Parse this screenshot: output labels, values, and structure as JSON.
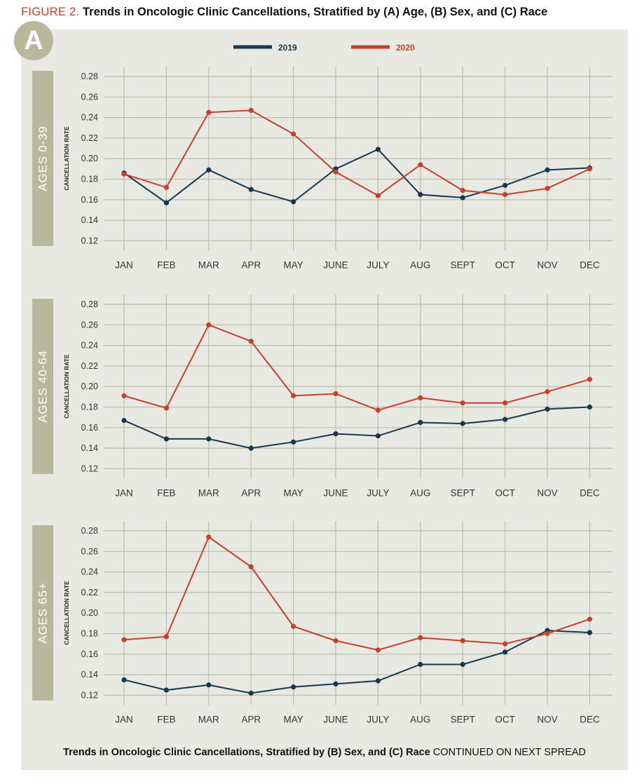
{
  "figure": {
    "label": "FIGURE 2.",
    "title": "Trends in Oncologic Clinic Cancellations, Stratified by (A) Age, (B) Sex, and (C) Race",
    "panel_letter": "A",
    "footer_bold": "Trends in Oncologic Clinic Cancellations, Stratified by (B) Sex, and (C) Race",
    "footer_rest": "CONTINUED ON NEXT SPREAD"
  },
  "colors": {
    "2019": "#14394f",
    "2020": "#c8402a",
    "grid": "#bcbca6",
    "side": "#b7b89c"
  },
  "chart_data": [
    {
      "type": "line",
      "panel": "AGES 0-39",
      "ylabel": "CANCELLATION RATE",
      "categories": [
        "JAN",
        "FEB",
        "MAR",
        "APR",
        "MAY",
        "JUNE",
        "JULY",
        "AUG",
        "SEPT",
        "OCT",
        "NOV",
        "DEC"
      ],
      "yticks": [
        "0.28",
        "0.26",
        "0.24",
        "0.22",
        "0.20",
        "0.18",
        "0.16",
        "0.14",
        "0.12"
      ],
      "ylim": [
        0.12,
        0.28
      ],
      "series": [
        {
          "name": "2019",
          "values": [
            0.186,
            0.157,
            0.189,
            0.17,
            0.158,
            0.19,
            0.209,
            0.165,
            0.162,
            0.174,
            0.189,
            0.191
          ]
        },
        {
          "name": "2020",
          "values": [
            0.185,
            0.172,
            0.245,
            0.247,
            0.224,
            0.187,
            0.164,
            0.194,
            0.169,
            0.165,
            0.171,
            0.19
          ]
        }
      ]
    },
    {
      "type": "line",
      "panel": "AGES 40-64",
      "ylabel": "CANCELLATION RATE",
      "categories": [
        "JAN",
        "FEB",
        "MAR",
        "APR",
        "MAY",
        "JUNE",
        "JULY",
        "AUG",
        "SEPT",
        "OCT",
        "NOV",
        "DEC"
      ],
      "yticks": [
        "0.28",
        "0.26",
        "0.24",
        "0.22",
        "0.20",
        "0.18",
        "0.16",
        "0.14",
        "0.12"
      ],
      "ylim": [
        0.12,
        0.28
      ],
      "series": [
        {
          "name": "2019",
          "values": [
            0.167,
            0.149,
            0.149,
            0.14,
            0.146,
            0.154,
            0.152,
            0.165,
            0.164,
            0.168,
            0.178,
            0.18
          ]
        },
        {
          "name": "2020",
          "values": [
            0.191,
            0.179,
            0.26,
            0.244,
            0.191,
            0.193,
            0.177,
            0.189,
            0.184,
            0.184,
            0.195,
            0.207
          ]
        }
      ]
    },
    {
      "type": "line",
      "panel": "AGES 65+",
      "ylabel": "CANCELLATION RATE",
      "categories": [
        "JAN",
        "FEB",
        "MAR",
        "APR",
        "MAY",
        "JUNE",
        "JULY",
        "AUG",
        "SEPT",
        "OCT",
        "NOV",
        "DEC"
      ],
      "yticks": [
        "0.28",
        "0.26",
        "0.24",
        "0.22",
        "0.20",
        "0.18",
        "0.16",
        "0.14",
        "0.12"
      ],
      "ylim": [
        0.12,
        0.28
      ],
      "series": [
        {
          "name": "2019",
          "values": [
            0.135,
            0.125,
            0.13,
            0.122,
            0.128,
            0.131,
            0.134,
            0.15,
            0.15,
            0.162,
            0.183,
            0.181
          ]
        },
        {
          "name": "2020",
          "values": [
            0.174,
            0.177,
            0.274,
            0.245,
            0.187,
            0.173,
            0.164,
            0.176,
            0.173,
            0.17,
            0.18,
            0.194
          ]
        }
      ]
    }
  ]
}
